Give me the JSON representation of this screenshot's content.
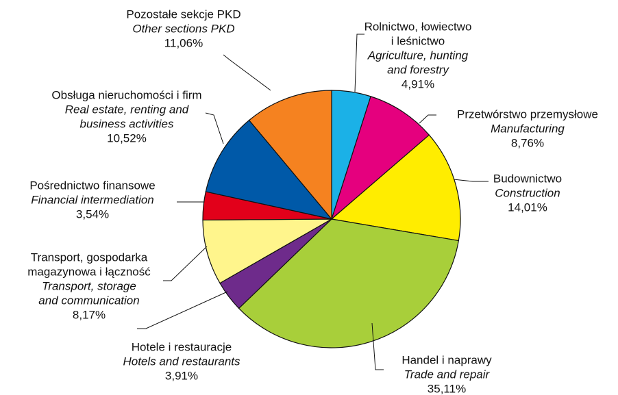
{
  "chart_data": {
    "type": "pie",
    "categories": [
      [
        "Rolnictwo, łowiectwo",
        "i leśnictwo"
      ],
      [
        "Przetwórstwo przemysłowe"
      ],
      [
        "Budownictwo"
      ],
      [
        "Handel i naprawy"
      ],
      [
        "Hotele i restauracje"
      ],
      [
        "Transport, gospodarka",
        "magazynowa i łączność"
      ],
      [
        "Pośrednictwo finansowe"
      ],
      [
        "Obsługa nieruchomości i firm"
      ],
      [
        "Pozostałe sekcje PKD"
      ]
    ],
    "categories_en": [
      [
        "Agriculture, hunting",
        "and forestry"
      ],
      [
        "Manufacturing"
      ],
      [
        "Construction"
      ],
      [
        "Trade and repair"
      ],
      [
        "Hotels and restaurants"
      ],
      [
        "Transport, storage",
        "and communication"
      ],
      [
        "Financial intermediation"
      ],
      [
        "Real estate, renting and",
        "business activities"
      ],
      [
        "Other sections PKD"
      ]
    ],
    "values": [
      4.91,
      8.76,
      14.01,
      35.11,
      3.91,
      8.17,
      3.54,
      10.52,
      11.06
    ],
    "value_labels": [
      "4,91%",
      "8,76%",
      "14,01%",
      "35,11%",
      "3,91%",
      "8,17%",
      "3,54%",
      "10,52%",
      "11,06%"
    ],
    "colors": [
      "#1bb1e7",
      "#e5007e",
      "#ffed00",
      "#a8cf3a",
      "#6e2b8b",
      "#fff58c",
      "#e2001a",
      "#0059a8",
      "#f58220"
    ]
  }
}
